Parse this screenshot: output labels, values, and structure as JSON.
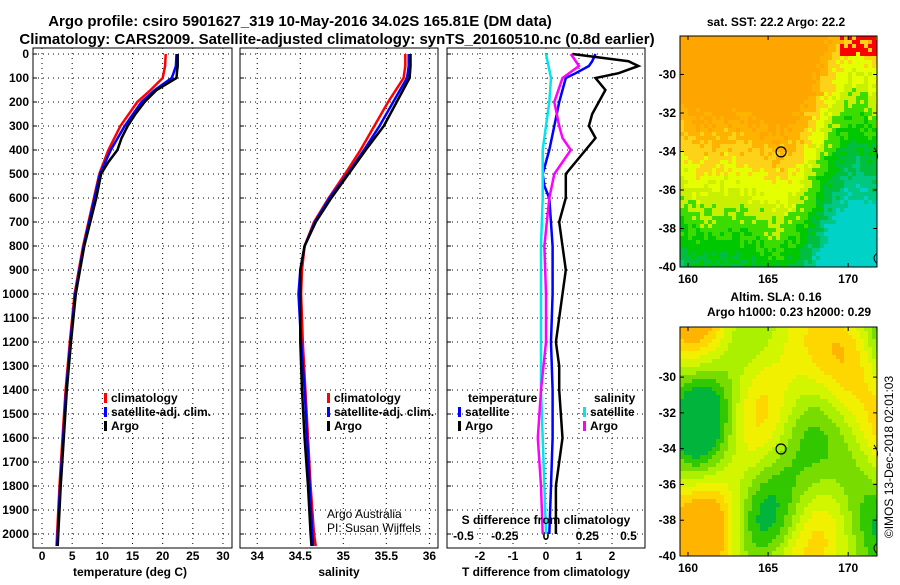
{
  "header": {
    "title_line1": "Argo profile: csiro 5901627_319 10-May-2016 34.02S 165.81E (DM data)",
    "title_line2": "Climatology: CARS2009. Satellite-adjusted climatology: synTS_20160510.nc (0.8d earlier)"
  },
  "colors": {
    "climatology": "#ff0000",
    "satellite": "#0000ff",
    "argo": "#000000",
    "sal_satellite": "#00e5ee",
    "sal_argo": "#ff00ff"
  },
  "chart_data": [
    {
      "type": "line",
      "name": "temperature-profile",
      "xlabel": "temperature (deg C)",
      "ylabel": "",
      "xlim": [
        -1.5,
        31.5
      ],
      "ylim": [
        2060,
        0
      ],
      "xticks": [
        0,
        5,
        10,
        15,
        20,
        25,
        30
      ],
      "yticks": [
        0,
        100,
        200,
        300,
        400,
        500,
        600,
        700,
        800,
        900,
        1000,
        1100,
        1200,
        1300,
        1400,
        1500,
        1600,
        1700,
        1800,
        1900,
        2000
      ],
      "grid": true,
      "legend_position": "lower-middle",
      "series": [
        {
          "name": "climatology",
          "color": "#ff0000",
          "depth": [
            0,
            50,
            100,
            150,
            200,
            300,
            400,
            500,
            600,
            700,
            800,
            900,
            1000,
            1200,
            1400,
            1600,
            1800,
            2000,
            2050
          ],
          "values": [
            20.5,
            20.4,
            20.0,
            18.0,
            15.8,
            13.0,
            11.0,
            9.5,
            8.6,
            7.7,
            6.8,
            6.1,
            5.4,
            4.6,
            3.9,
            3.4,
            2.9,
            2.5,
            2.4
          ]
        },
        {
          "name": "satellite-adj. clim.",
          "color": "#0000ff",
          "depth": [
            0,
            50,
            80,
            100,
            150,
            200,
            300,
            400,
            500,
            600,
            700,
            800,
            900,
            1000,
            1200,
            1400,
            1600,
            1800,
            2000,
            2050
          ],
          "values": [
            22.3,
            22.2,
            21.8,
            21.5,
            18.7,
            16.5,
            13.7,
            11.4,
            9.6,
            8.7,
            7.8,
            6.9,
            6.2,
            5.5,
            4.7,
            4.0,
            3.5,
            3.0,
            2.6,
            2.5
          ]
        },
        {
          "name": "Argo",
          "color": "#000000",
          "depth": [
            0,
            50,
            70,
            100,
            150,
            200,
            250,
            300,
            350,
            400,
            450,
            500,
            600,
            700,
            800,
            900,
            1000,
            1200,
            1400,
            1600,
            1800,
            2000,
            2050
          ],
          "values": [
            22.5,
            22.5,
            22.4,
            22.3,
            19.0,
            17.0,
            15.5,
            14.2,
            13.2,
            12.5,
            11.0,
            9.8,
            9.0,
            8.0,
            7.0,
            6.3,
            5.6,
            4.8,
            4.1,
            3.6,
            3.1,
            2.7,
            2.6
          ]
        }
      ]
    },
    {
      "type": "line",
      "name": "salinity-profile",
      "xlabel": "salinity",
      "xlim": [
        33.8,
        36.1
      ],
      "ylim": [
        2060,
        0
      ],
      "xticks": [
        34,
        34.5,
        35,
        35.5,
        36
      ],
      "grid": true,
      "annotation": [
        "Argo Australia",
        "PI: Susan Wijffels"
      ],
      "series": [
        {
          "name": "climatology",
          "color": "#ff0000",
          "depth": [
            0,
            50,
            100,
            200,
            300,
            400,
            500,
            600,
            700,
            800,
            900,
            1000,
            1200,
            1400,
            1600,
            1800,
            2000,
            2050
          ],
          "values": [
            35.72,
            35.72,
            35.7,
            35.52,
            35.36,
            35.2,
            35.02,
            34.83,
            34.66,
            34.55,
            34.52,
            34.51,
            34.53,
            34.56,
            34.59,
            34.62,
            34.66,
            34.68
          ]
        },
        {
          "name": "satellite-adj. clim.",
          "color": "#0000ff",
          "depth": [
            0,
            50,
            100,
            200,
            300,
            400,
            500,
            600,
            700,
            800,
            900,
            1000,
            1200,
            1400,
            1600,
            1800,
            2000,
            2050
          ],
          "values": [
            35.76,
            35.76,
            35.74,
            35.58,
            35.42,
            35.24,
            35.05,
            34.84,
            34.67,
            34.55,
            34.5,
            34.48,
            34.51,
            34.55,
            34.58,
            34.61,
            34.64,
            34.65
          ]
        },
        {
          "name": "Argo",
          "color": "#000000",
          "depth": [
            0,
            50,
            100,
            200,
            300,
            400,
            500,
            600,
            700,
            800,
            900,
            1000,
            1200,
            1400,
            1600,
            1800,
            2000,
            2050
          ],
          "values": [
            35.78,
            35.78,
            35.77,
            35.62,
            35.47,
            35.26,
            35.06,
            34.86,
            34.68,
            34.55,
            34.5,
            34.5,
            34.5,
            34.52,
            34.55,
            34.59,
            34.62,
            34.63
          ]
        }
      ]
    },
    {
      "type": "line",
      "name": "difference-profile",
      "xlabel": "T difference from climatology",
      "x2label": "S difference from climatology",
      "xlim": [
        -3,
        3
      ],
      "x2lim": [
        -0.6,
        0.6
      ],
      "ylim": [
        2060,
        0
      ],
      "xticks": [
        "-2",
        "-1",
        "0",
        "1",
        "2"
      ],
      "x2ticks": [
        "-0.5",
        "-0.25",
        "0",
        "0.25",
        "0.5"
      ],
      "legend": {
        "temperature_title": "temperature",
        "salinity_title": "salinity",
        "satellite": "satellite",
        "argo": "Argo"
      },
      "series": [
        {
          "name": "T satellite",
          "axis": "T",
          "color": "#0000ff",
          "depth": [
            0,
            30,
            50,
            80,
            100,
            150,
            200,
            300,
            400,
            500,
            550,
            600,
            800,
            1000,
            1200,
            1400,
            1600,
            1800,
            2000
          ],
          "values": [
            1.5,
            1.4,
            1.3,
            0.9,
            0.6,
            0.5,
            0.4,
            0.25,
            0.1,
            -0.1,
            -0.05,
            0.1,
            0.2,
            0.2,
            0.15,
            0.2,
            0.2,
            0.15,
            0.1
          ]
        },
        {
          "name": "T Argo",
          "axis": "T",
          "color": "#000000",
          "depth": [
            0,
            30,
            50,
            80,
            100,
            150,
            200,
            250,
            300,
            350,
            400,
            500,
            600,
            700,
            800,
            900,
            1000,
            1100,
            1200,
            1300,
            1400,
            1600,
            1700,
            1800,
            2000
          ],
          "values": [
            0.8,
            2.5,
            2.8,
            2.2,
            1.5,
            1.8,
            1.6,
            1.4,
            1.3,
            1.5,
            1.2,
            0.6,
            0.6,
            0.4,
            0.5,
            0.6,
            0.5,
            0.4,
            0.3,
            0.4,
            0.4,
            0.5,
            0.4,
            0.3,
            0.3
          ]
        },
        {
          "name": "S satellite",
          "axis": "S",
          "color": "#00e5ee",
          "depth": [
            0,
            100,
            200,
            300,
            400,
            600,
            800,
            1000,
            1200,
            1400,
            1600,
            1800,
            2000
          ],
          "values": [
            0.0,
            0.03,
            0.02,
            0.0,
            -0.02,
            -0.02,
            -0.03,
            -0.03,
            -0.03,
            -0.03,
            -0.02,
            -0.01,
            0.0
          ]
        },
        {
          "name": "S Argo",
          "axis": "S",
          "color": "#ff00ff",
          "depth": [
            0,
            50,
            100,
            200,
            300,
            350,
            400,
            500,
            600,
            800,
            1000,
            1200,
            1400,
            1600,
            1800,
            2000
          ],
          "values": [
            0.15,
            0.2,
            0.1,
            0.05,
            0.08,
            0.1,
            0.15,
            0.05,
            0.02,
            -0.01,
            0.0,
            0.0,
            -0.03,
            -0.05,
            -0.03,
            -0.02
          ]
        }
      ]
    },
    {
      "type": "heatmap",
      "name": "sst-map",
      "title": "sat. SST: 22.2 Argo: 22.2",
      "xlim": [
        159.5,
        171.8
      ],
      "ylim": [
        -40,
        -28
      ],
      "xticks": [
        160,
        165,
        170
      ],
      "yticks": [
        -30,
        -32,
        -34,
        -36,
        -38,
        -40
      ],
      "marker": {
        "lon": 165.81,
        "lat": -34.02
      }
    },
    {
      "type": "heatmap",
      "name": "sla-map",
      "title_line1": "Altim. SLA: 0.16",
      "title_line2": "Argo h1000: 0.23 h2000: 0.29",
      "xlim": [
        159.5,
        171.8
      ],
      "ylim": [
        -40,
        -27.2
      ],
      "xticks": [
        160,
        165,
        170
      ],
      "yticks": [
        -30,
        -32,
        -34,
        -36,
        -38,
        -40
      ],
      "marker": {
        "lon": 165.81,
        "lat": -34.02
      }
    }
  ],
  "stamp": "©IMOS 13-Dec-2018 02:01:03"
}
